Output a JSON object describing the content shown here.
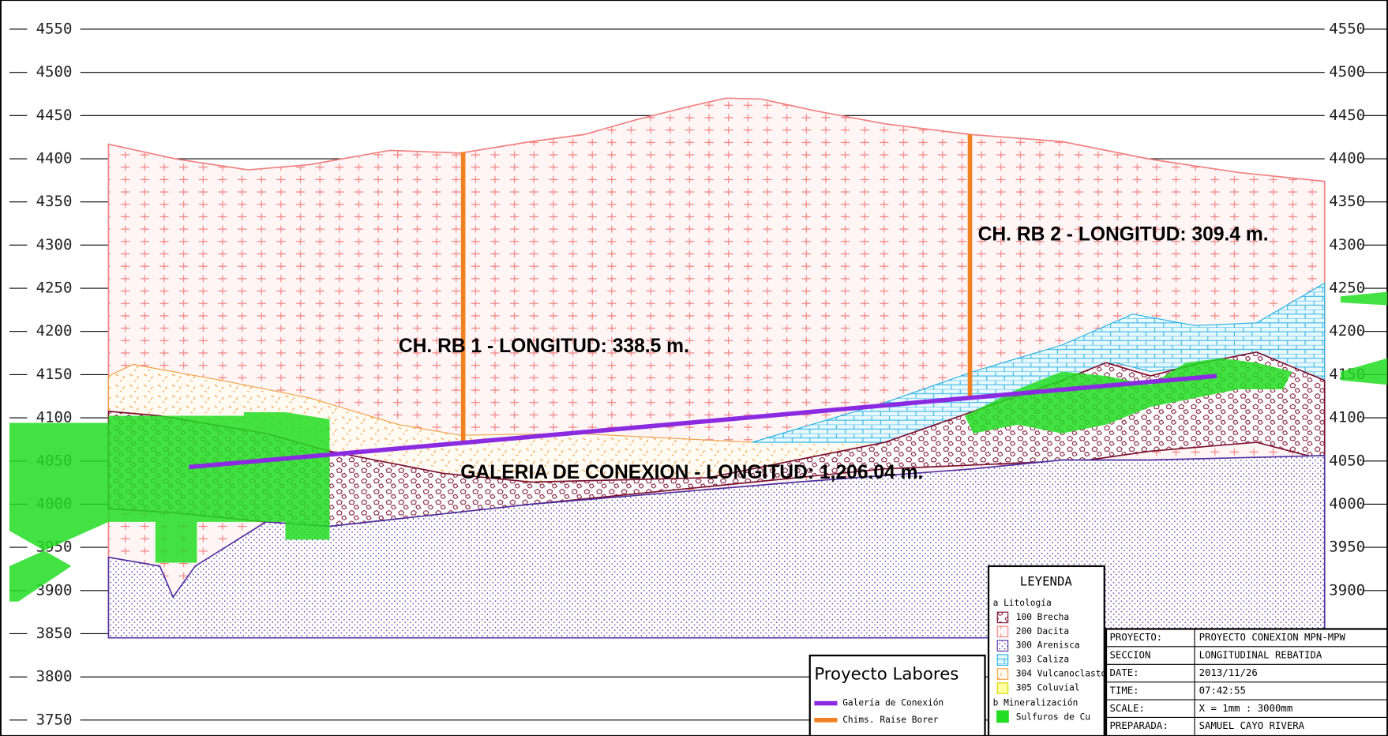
{
  "axis": {
    "left_ticks": [
      4550,
      4500,
      4450,
      4400,
      4350,
      4300,
      4250,
      4200,
      4150,
      4100,
      4050,
      4000,
      3950,
      3900,
      3850,
      3800,
      3750
    ],
    "right_ticks": [
      4550,
      4500,
      4450,
      4400,
      4350,
      4300,
      4250,
      4200,
      4150,
      4100,
      4050,
      4000,
      3950,
      3900
    ]
  },
  "labels": {
    "rb1": "CH. RB 1 - LONGITUD: 338.5 m.",
    "rb2": "CH. RB 2 - LONGITUD: 309.4 m.",
    "galeria": "GALERIA DE CONEXION - LONGITUD: 1,206.04 m."
  },
  "project_legend": {
    "title": "Proyecto Labores",
    "items": [
      "Galería de Conexión",
      "Chims. Raise Borer"
    ]
  },
  "legend": {
    "title": "LEYENDA",
    "group_a": {
      "letter": "a",
      "name": "Litología",
      "items": [
        "100 Brecha",
        "200 Dacita",
        "300 Arenisca",
        "303 Caliza",
        "304 Vulcanoclasto",
        "305 Coluvial"
      ]
    },
    "group_b": {
      "letter": "b",
      "name": "Mineralización",
      "items": [
        "Sulfuros de Cu"
      ]
    }
  },
  "title_block": {
    "rows": [
      [
        "PROYECTO:",
        "PROYECTO CONEXION MPN-MPW"
      ],
      [
        "SECCION",
        "LONGITUDINAL REBATIDA"
      ],
      [
        "DATE:",
        "2013/11/26"
      ],
      [
        "TIME:",
        "07:42:55"
      ],
      [
        "SCALE:",
        "X = 1mm : 3000mm"
      ],
      [
        "PREPARADA:",
        "SAMUEL CAYO RIVERA"
      ]
    ]
  }
}
